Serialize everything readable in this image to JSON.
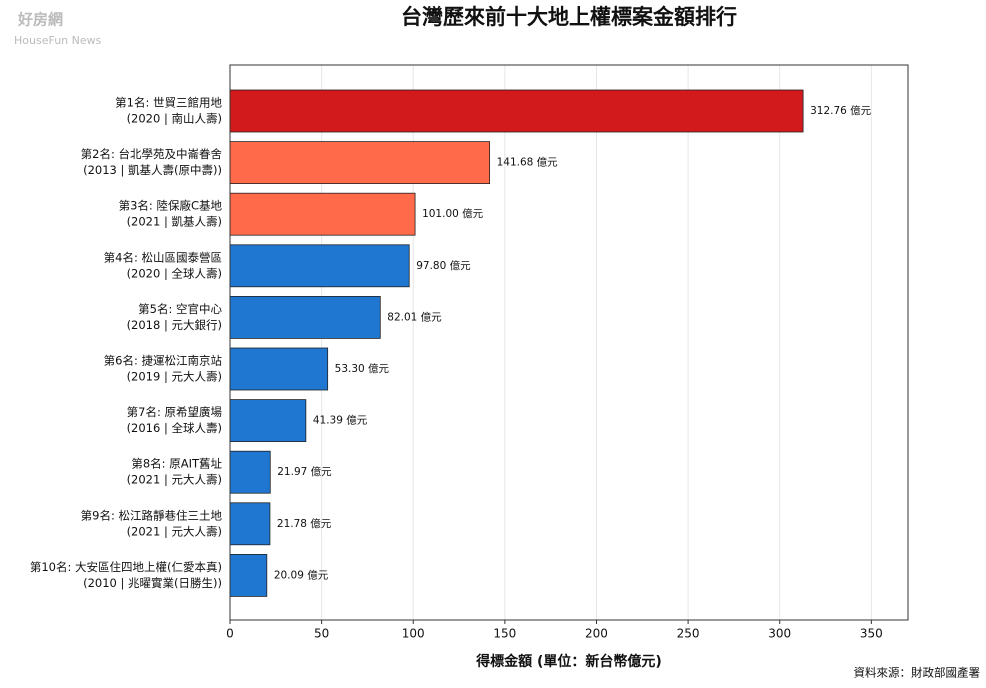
{
  "watermark": [
    "好房網",
    "HouseFun News"
  ],
  "chart_data": {
    "type": "barh",
    "title": "台灣歷來前十大地上權標案金額排行",
    "x_label": "得標金額 (單位：新台幣億元)",
    "source": "資料來源：財政部國產署",
    "categories": [
      [
        "第1名: 世貿三館用地",
        "(2020 | 南山人壽)"
      ],
      [
        "第2名: 台北學苑及中崙眷舍",
        "(2013 | 凱基人壽(原中壽))"
      ],
      [
        "第3名: 陸保廠C基地",
        "(2021 | 凱基人壽)"
      ],
      [
        "第4名: 松山區國泰營區",
        "(2020 | 全球人壽)"
      ],
      [
        "第5名: 空官中心",
        "(2018 | 元大銀行)"
      ],
      [
        "第6名: 捷運松江南京站",
        "(2019 | 元大人壽)"
      ],
      [
        "第7名: 原希望廣場",
        "(2016 | 全球人壽)"
      ],
      [
        "第8名: 原AIT舊址",
        "(2021 | 元大人壽)"
      ],
      [
        "第9名: 松江路靜巷住三土地",
        "(2021 | 元大人壽)"
      ],
      [
        "第10名: 大安區住四地上權(仁愛本真)",
        "(2010 | 兆曜實業(日勝生))"
      ]
    ],
    "values": [
      312.76,
      141.68,
      101.0,
      97.8,
      82.01,
      53.3,
      41.39,
      21.97,
      21.78,
      20.09
    ],
    "value_labels": [
      "312.76 億元",
      "141.68 億元",
      "101.00 億元",
      "97.80 億元",
      "82.01 億元",
      "53.30 億元",
      "41.39 億元",
      "21.97 億元",
      "21.78 億元",
      "20.09 億元"
    ],
    "colors": [
      "#d2191b",
      "#ff6a4b",
      "#ff6a4b",
      "#1f77d2",
      "#1f77d2",
      "#1f77d2",
      "#1f77d2",
      "#1f77d2",
      "#1f77d2",
      "#1f77d2"
    ],
    "xlim": [
      0,
      370
    ],
    "xticks": [
      0,
      50,
      100,
      150,
      200,
      250,
      300,
      350
    ],
    "grid": true
  }
}
